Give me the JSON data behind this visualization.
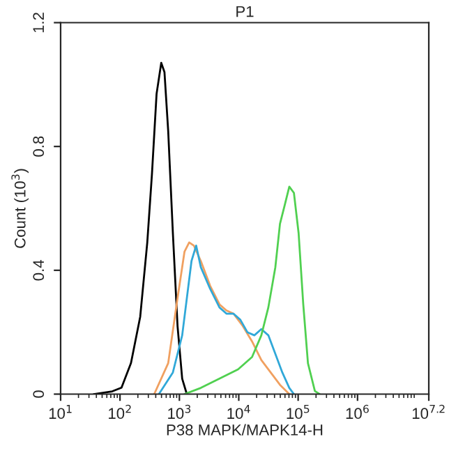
{
  "chart_data": {
    "type": "line",
    "title": "P1",
    "xlabel": "P38 MAPK/MAPK14-H",
    "ylabel": "Count (10$^{3}$)",
    "log": "x",
    "grid": false,
    "marker": "none",
    "line_style": "solid",
    "xlim": [
      10,
      15848932
    ],
    "ylim": [
      0,
      1.2
    ],
    "xticks": [
      {
        "value": 10,
        "label": "10$^{1}$"
      },
      {
        "value": 100,
        "label": "10$^{2}$"
      },
      {
        "value": 1000,
        "label": "10$^{3}$"
      },
      {
        "value": 10000,
        "label": "10$^{4}$"
      },
      {
        "value": 100000,
        "label": "10$^{5}$"
      },
      {
        "value": 1000000,
        "label": "10$^{6}$"
      },
      {
        "value": 15848932,
        "label": "10$^{7.2}$"
      }
    ],
    "yticks": [
      0,
      0.4,
      0.8,
      1.2
    ],
    "series": [
      {
        "color": "#000000",
        "x": [
          36,
          74,
          106,
          153,
          219,
          288,
          345,
          413,
          495,
          561,
          648,
          777,
          931,
          1115,
          1334
        ],
        "values": [
          0,
          0.009,
          0.021,
          0.1,
          0.25,
          0.49,
          0.71,
          0.97,
          1.07,
          1.04,
          0.85,
          0.52,
          0.22,
          0.05,
          0
        ]
      },
      {
        "color": "#f0a060",
        "x": [
          377,
          648,
          931,
          1219,
          1462,
          1750,
          2296,
          3296,
          4732,
          6199,
          8128,
          11670,
          16750,
          23990,
          34430,
          49430,
          70960
        ],
        "values": [
          0,
          0.1,
          0.31,
          0.46,
          0.49,
          0.48,
          0.43,
          0.35,
          0.29,
          0.27,
          0.26,
          0.22,
          0.17,
          0.11,
          0.07,
          0.03,
          0
        ]
      },
      {
        "color": "#30a8d8",
        "x": [
          452,
          777,
          1115,
          1600,
          1916,
          2296,
          3296,
          4732,
          6199,
          8128,
          10640,
          13960,
          18300,
          23990,
          31480,
          41300,
          54100,
          70960,
          84900
        ],
        "values": [
          0,
          0.07,
          0.19,
          0.43,
          0.48,
          0.41,
          0.34,
          0.28,
          0.26,
          0.26,
          0.24,
          0.2,
          0.19,
          0.21,
          0.19,
          0.13,
          0.07,
          0.02,
          0
        ]
      },
      {
        "color": "#50d050",
        "x": [
          1219,
          2296,
          4732,
          9730,
          16750,
          23990,
          31480,
          41300,
          49430,
          59290,
          70960,
          84900,
          101800,
          121900,
          146200,
          191400,
          229600
        ],
        "values": [
          0,
          0.02,
          0.05,
          0.08,
          0.12,
          0.19,
          0.28,
          0.41,
          0.55,
          0.61,
          0.67,
          0.65,
          0.52,
          0.29,
          0.1,
          0.01,
          0
        ]
      }
    ]
  }
}
